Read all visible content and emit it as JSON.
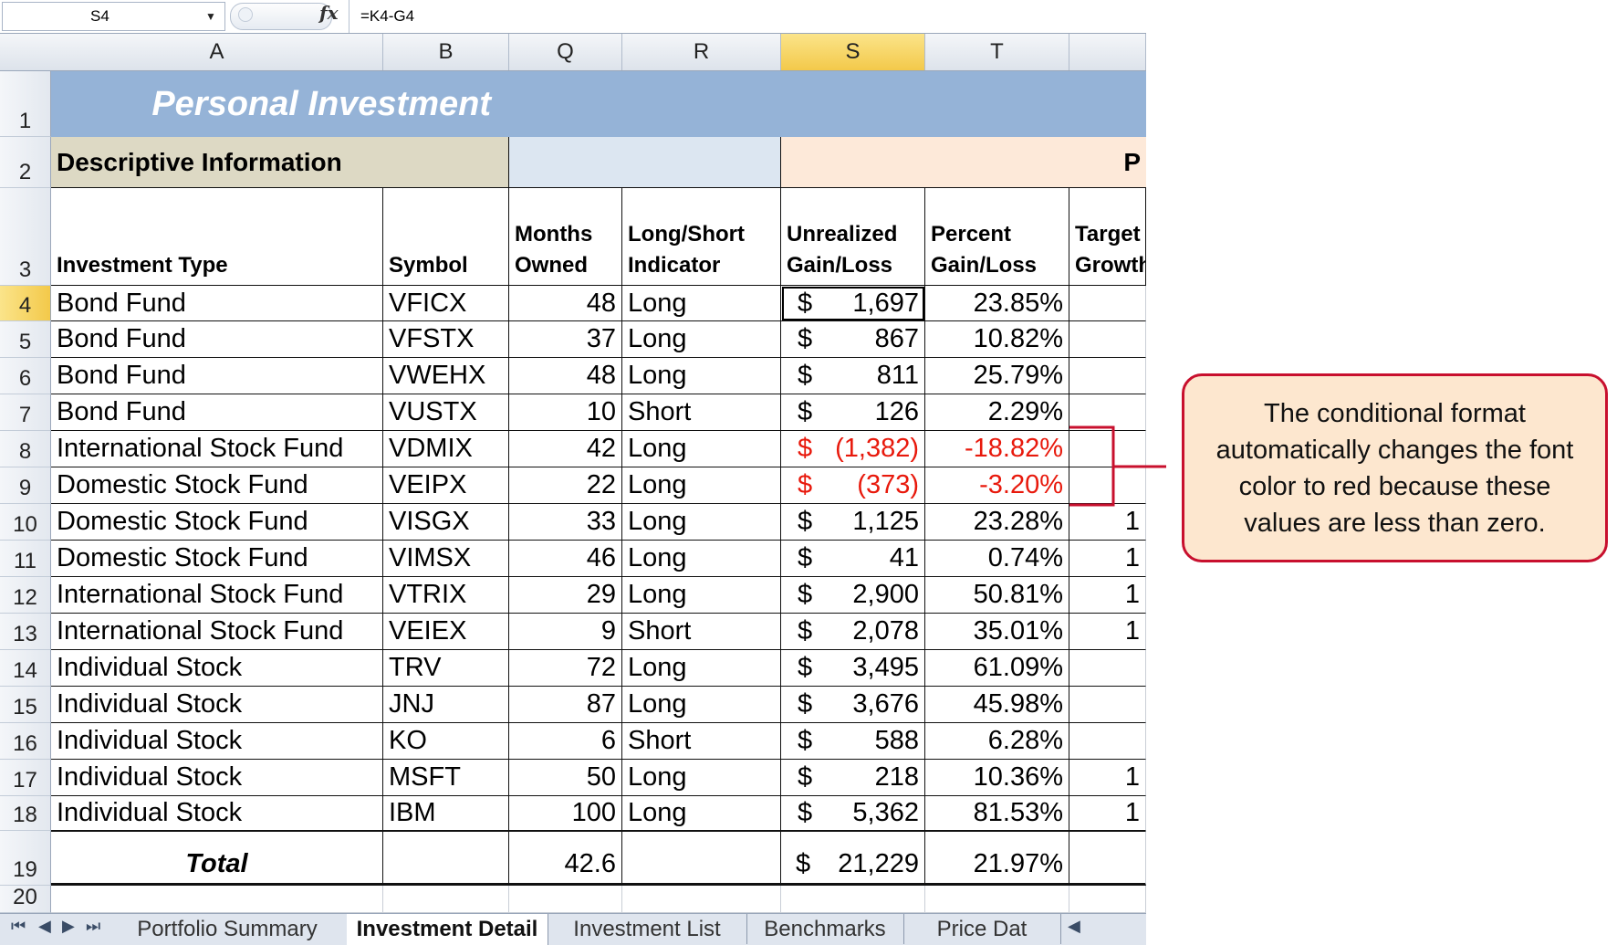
{
  "formula_bar": {
    "name_box": "S4",
    "fx_label": "fx",
    "formula": "=K4-G4"
  },
  "columns": [
    {
      "key": "A",
      "label": "A"
    },
    {
      "key": "B",
      "label": "B"
    },
    {
      "key": "Q",
      "label": "Q"
    },
    {
      "key": "R",
      "label": "R"
    },
    {
      "key": "S",
      "label": "S",
      "selected": true
    },
    {
      "key": "T",
      "label": "T"
    },
    {
      "key": "U",
      "label": ""
    }
  ],
  "row_numbers": [
    "1",
    "2",
    "3",
    "4",
    "5",
    "6",
    "7",
    "8",
    "9",
    "10",
    "11",
    "12",
    "13",
    "14",
    "15",
    "16",
    "17",
    "18",
    "19",
    "20"
  ],
  "selected_row": "4",
  "sheet": {
    "title": "Personal Investment",
    "section_descriptive": "Descriptive Information",
    "section_partial": "P",
    "headers": {
      "investment_type": "Investment Type",
      "symbol": "Symbol",
      "months_owned_1": "Months",
      "months_owned_2": "Owned",
      "indicator_1": "Long/Short",
      "indicator_2": "Indicator",
      "unrealized_1": "Unrealized",
      "unrealized_2": "Gain/Loss",
      "percent_1": "Percent",
      "percent_2": "Gain/Loss",
      "target_1": "Target",
      "target_2": "Growth"
    },
    "rows": [
      {
        "type": "Bond Fund",
        "symbol": "VFICX",
        "months": "48",
        "indicator": "Long",
        "gain": "1,697",
        "pct": "23.85%",
        "target": "",
        "negative": false
      },
      {
        "type": "Bond Fund",
        "symbol": "VFSTX",
        "months": "37",
        "indicator": "Long",
        "gain": "867",
        "pct": "10.82%",
        "target": "",
        "negative": false
      },
      {
        "type": "Bond Fund",
        "symbol": "VWEHX",
        "months": "48",
        "indicator": "Long",
        "gain": "811",
        "pct": "25.79%",
        "target": "",
        "negative": false
      },
      {
        "type": "Bond Fund",
        "symbol": "VUSTX",
        "months": "10",
        "indicator": "Short",
        "gain": "126",
        "pct": "2.29%",
        "target": "",
        "negative": false
      },
      {
        "type": "International Stock Fund",
        "symbol": "VDMIX",
        "months": "42",
        "indicator": "Long",
        "gain": "(1,382)",
        "pct": "-18.82%",
        "target": "",
        "negative": true
      },
      {
        "type": "Domestic Stock Fund",
        "symbol": "VEIPX",
        "months": "22",
        "indicator": "Long",
        "gain": "(373)",
        "pct": "-3.20%",
        "target": "",
        "negative": true
      },
      {
        "type": "Domestic Stock Fund",
        "symbol": "VISGX",
        "months": "33",
        "indicator": "Long",
        "gain": "1,125",
        "pct": "23.28%",
        "target": "1",
        "negative": false
      },
      {
        "type": "Domestic Stock Fund",
        "symbol": "VIMSX",
        "months": "46",
        "indicator": "Long",
        "gain": "41",
        "pct": "0.74%",
        "target": "1",
        "negative": false
      },
      {
        "type": "International Stock Fund",
        "symbol": "VTRIX",
        "months": "29",
        "indicator": "Long",
        "gain": "2,900",
        "pct": "50.81%",
        "target": "1",
        "negative": false
      },
      {
        "type": "International Stock Fund",
        "symbol": "VEIEX",
        "months": "9",
        "indicator": "Short",
        "gain": "2,078",
        "pct": "35.01%",
        "target": "1",
        "negative": false
      },
      {
        "type": "Individual Stock",
        "symbol": "TRV",
        "months": "72",
        "indicator": "Long",
        "gain": "3,495",
        "pct": "61.09%",
        "target": "",
        "negative": false
      },
      {
        "type": "Individual Stock",
        "symbol": "JNJ",
        "months": "87",
        "indicator": "Long",
        "gain": "3,676",
        "pct": "45.98%",
        "target": "",
        "negative": false
      },
      {
        "type": "Individual Stock",
        "symbol": "KO",
        "months": "6",
        "indicator": "Short",
        "gain": "588",
        "pct": "6.28%",
        "target": "",
        "negative": false
      },
      {
        "type": "Individual Stock",
        "symbol": "MSFT",
        "months": "50",
        "indicator": "Long",
        "gain": "218",
        "pct": "10.36%",
        "target": "1",
        "negative": false
      },
      {
        "type": "Individual Stock",
        "symbol": "IBM",
        "months": "100",
        "indicator": "Long",
        "gain": "5,362",
        "pct": "81.53%",
        "target": "1",
        "negative": false
      }
    ],
    "currency_symbol": "$",
    "total": {
      "label": "Total",
      "months": "42.6",
      "gain": "21,229",
      "pct": "21.97%"
    }
  },
  "tabs": [
    {
      "label": "Portfolio Summary",
      "active": false
    },
    {
      "label": "Investment Detail",
      "active": true
    },
    {
      "label": "Investment List",
      "active": false
    },
    {
      "label": "Benchmarks",
      "active": false
    },
    {
      "label": "Price Dat",
      "active": false
    }
  ],
  "callout": {
    "text": "The conditional format automatically changes the font color to red because these values are less than zero."
  },
  "colors": {
    "title_band": "#95b3d7",
    "descriptive_band": "#ddd9c4",
    "partial_band": "#fde9d9",
    "empty_band": "#dce6f1",
    "negative": "#e8190c",
    "callout_border": "#c8102e",
    "callout_fill": "#fde7cf"
  }
}
